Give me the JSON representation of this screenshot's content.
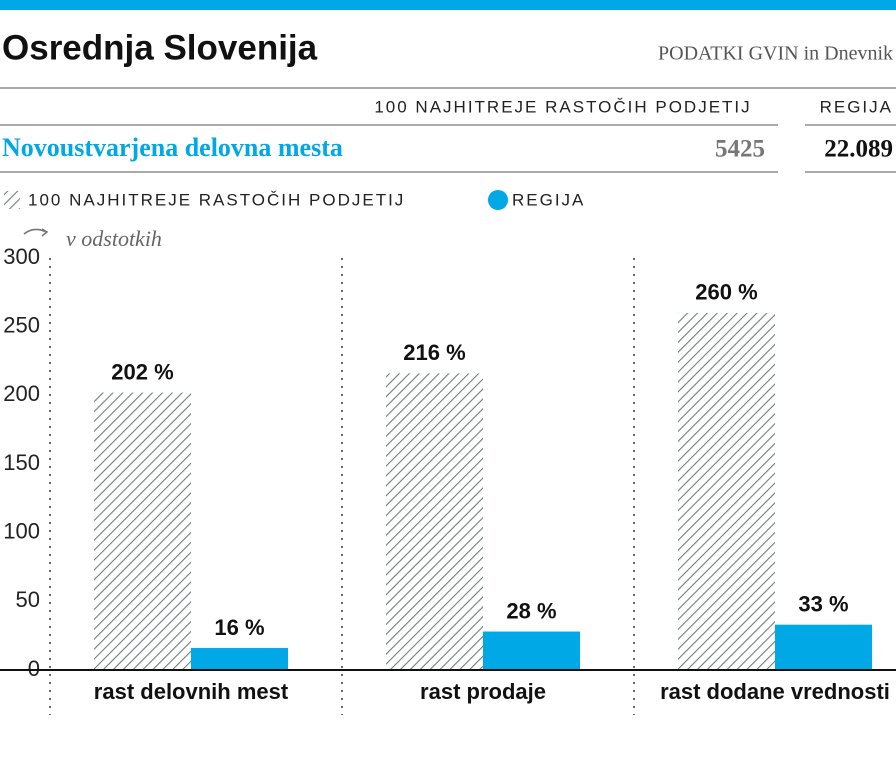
{
  "source": "PODATKI GVIN in Dnevnik",
  "summary": {
    "columns": [
      "100 NAJHITREJE RASTOČIH PODJETIJ",
      "REGIJA"
    ],
    "row": {
      "label": "Novoustvarjena delovna mesta",
      "cells": [
        "5425",
        "22.089"
      ]
    }
  },
  "chart_data": {
    "type": "bar",
    "title": "Osrednja Slovenija",
    "annotation": "v odstotkih",
    "categories": [
      "rast delovnih mest",
      "rast prodaje",
      "rast dodane vrednosti"
    ],
    "series": [
      {
        "name": "100 NAJHITREJE RASTOČIH PODJETIJ",
        "color": "#707f7c",
        "pattern": "hatch",
        "values": [
          202,
          216,
          260
        ],
        "value_labels": [
          "202 %",
          "216 %",
          "260 %"
        ]
      },
      {
        "name": "REGIJA",
        "color": "#00a8e6",
        "values": [
          16,
          28,
          33
        ],
        "value_labels": [
          "16 %",
          "28 %",
          "33 %"
        ]
      }
    ],
    "ylim": [
      0,
      300
    ],
    "yticks": [
      0,
      50,
      100,
      150,
      200,
      250,
      300
    ],
    "grid": false
  }
}
